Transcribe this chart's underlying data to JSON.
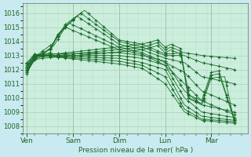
{
  "background_color": "#c8eaf0",
  "plot_bg_color": "#cceedd",
  "grid_color": "#aaccbb",
  "line_color": "#1a6b2a",
  "ylabel": "Pression niveau de la mer( hPa )",
  "ylim": [
    1007.5,
    1016.7
  ],
  "yticks": [
    1008,
    1009,
    1010,
    1011,
    1012,
    1013,
    1014,
    1015,
    1016
  ],
  "day_labels": [
    "Ven",
    "Sam",
    "Dim",
    "Lun",
    "Mar"
  ],
  "day_positions": [
    0,
    24,
    48,
    72,
    96
  ],
  "xlim": [
    -2,
    115
  ],
  "members": [
    {
      "xp": [
        0,
        4,
        8,
        14,
        20,
        30,
        48,
        60,
        72,
        82,
        91,
        108
      ],
      "yp": [
        1011.7,
        1012.9,
        1013.3,
        1013.9,
        1015.2,
        1016.2,
        1014.1,
        1013.8,
        1013.1,
        1013.2,
        1013.0,
        1012.8
      ]
    },
    {
      "xp": [
        0,
        4,
        8,
        14,
        20,
        28,
        48,
        60,
        72,
        82,
        91,
        108
      ],
      "yp": [
        1011.8,
        1012.8,
        1013.1,
        1013.7,
        1015.0,
        1016.0,
        1014.0,
        1013.6,
        1013.0,
        1013.0,
        1012.5,
        1012.0
      ]
    },
    {
      "xp": [
        0,
        4,
        8,
        12,
        18,
        26,
        48,
        60,
        72,
        82,
        91,
        108
      ],
      "yp": [
        1011.9,
        1012.7,
        1013.0,
        1013.5,
        1014.8,
        1015.8,
        1013.8,
        1013.4,
        1012.8,
        1012.5,
        1011.5,
        1011.0
      ]
    },
    {
      "xp": [
        0,
        4,
        8,
        12,
        16,
        22,
        48,
        60,
        72,
        82,
        91,
        108
      ],
      "yp": [
        1012.0,
        1012.8,
        1013.2,
        1013.4,
        1014.5,
        1015.3,
        1013.6,
        1013.2,
        1012.5,
        1011.8,
        1010.5,
        1009.5
      ]
    },
    {
      "xp": [
        0,
        4,
        8,
        12,
        15,
        20,
        48,
        60,
        72,
        82,
        91,
        108
      ],
      "yp": [
        1012.1,
        1012.9,
        1013.0,
        1013.2,
        1014.2,
        1015.0,
        1013.4,
        1013.1,
        1012.3,
        1011.0,
        1009.8,
        1008.8
      ]
    },
    {
      "xp": [
        0,
        4,
        8,
        48,
        60,
        72,
        82,
        91,
        108
      ],
      "yp": [
        1012.2,
        1013.0,
        1013.1,
        1013.2,
        1013.0,
        1012.6,
        1010.5,
        1009.5,
        1009.0
      ]
    },
    {
      "xp": [
        0,
        4,
        8,
        48,
        60,
        72,
        82,
        91,
        108
      ],
      "yp": [
        1012.3,
        1013.0,
        1013.0,
        1013.0,
        1012.8,
        1012.3,
        1010.0,
        1009.0,
        1008.6
      ]
    },
    {
      "xp": [
        0,
        4,
        8,
        48,
        60,
        72,
        82,
        91,
        108
      ],
      "yp": [
        1012.4,
        1013.1,
        1013.0,
        1012.8,
        1012.5,
        1012.0,
        1009.5,
        1008.7,
        1008.4
      ]
    },
    {
      "xp": [
        0,
        4,
        8,
        48,
        60,
        72,
        82,
        91,
        108
      ],
      "yp": [
        1012.5,
        1013.1,
        1013.0,
        1012.6,
        1012.3,
        1011.5,
        1009.2,
        1008.5,
        1008.3
      ]
    },
    {
      "xp": [
        0,
        4,
        8,
        48,
        60,
        72,
        82,
        91,
        108
      ],
      "yp": [
        1012.2,
        1013.0,
        1013.0,
        1012.4,
        1012.1,
        1011.0,
        1009.0,
        1008.4,
        1008.2
      ]
    },
    {
      "xp": [
        0,
        4,
        8,
        60,
        68,
        72,
        75,
        80,
        84,
        91,
        96,
        100,
        108
      ],
      "yp": [
        1012.1,
        1012.9,
        1013.0,
        1013.8,
        1014.1,
        1013.6,
        1013.8,
        1013.5,
        1010.2,
        1009.8,
        1011.8,
        1011.9,
        1008.5
      ]
    },
    {
      "xp": [
        0,
        4,
        8,
        60,
        68,
        72,
        75,
        80,
        84,
        91,
        96,
        100,
        108
      ],
      "yp": [
        1011.9,
        1012.8,
        1012.9,
        1013.6,
        1013.9,
        1013.4,
        1013.6,
        1013.3,
        1010.0,
        1009.6,
        1011.6,
        1011.7,
        1008.4
      ]
    },
    {
      "xp": [
        0,
        4,
        8,
        60,
        68,
        72,
        75,
        80,
        85,
        91,
        96,
        103,
        108
      ],
      "yp": [
        1011.8,
        1012.7,
        1012.8,
        1013.4,
        1013.7,
        1013.2,
        1013.4,
        1013.1,
        1009.9,
        1009.5,
        1011.4,
        1011.5,
        1008.3
      ]
    }
  ],
  "separator_color": "#8aaa9a",
  "tick_label_color": "#226622"
}
